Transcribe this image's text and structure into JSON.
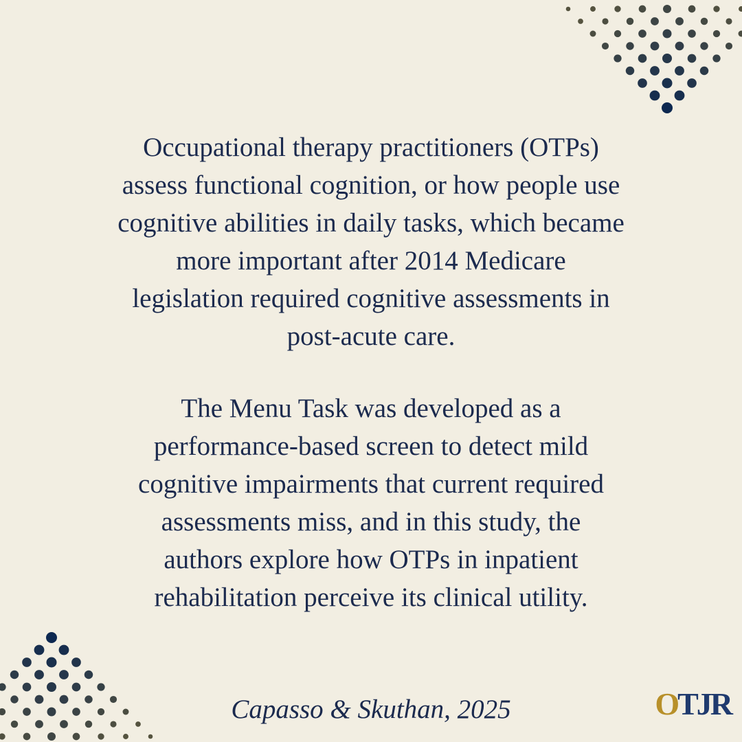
{
  "paragraphs": [
    {
      "lines": [
        "Occupational therapy practitioners (OTPs)",
        "assess functional cognition, or how people use",
        "cognitive abilities in daily tasks, which became",
        "more important after 2014 Medicare",
        "legislation required cognitive assessments in",
        "post-acute care."
      ]
    },
    {
      "lines": [
        "The Menu Task was developed as a",
        "performance-based screen to detect mild",
        "cognitive impairments that current required",
        "assessments miss, and in this study, the",
        "authors explore how OTPs in inpatient",
        "rehabilitation perceive its clinical utility."
      ]
    }
  ],
  "citation": "Capasso & Skuthan, 2025",
  "logo": {
    "first": "O",
    "rest": "TJR"
  }
}
